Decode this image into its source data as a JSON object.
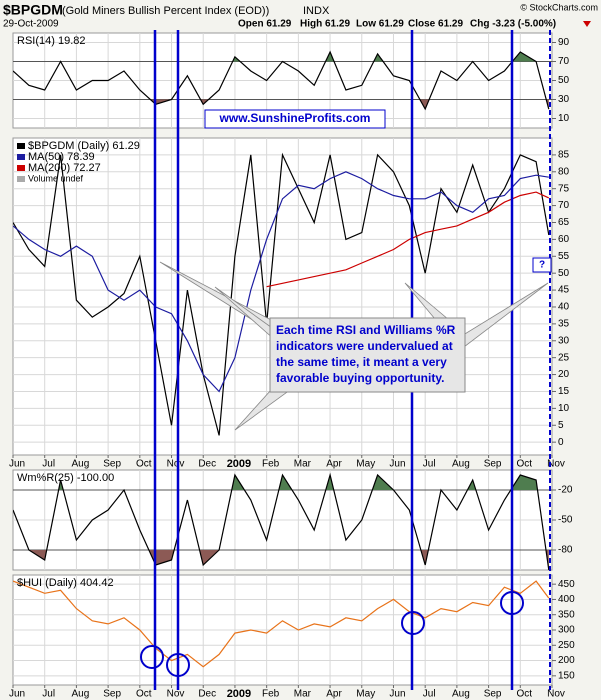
{
  "header": {
    "symbol": "$BPGDM",
    "name": "(Gold Miners Bullish Percent Index (EOD))",
    "exchange": "INDX",
    "date": "29-Oct-2009",
    "open": "Open 61.29",
    "high": "High 61.29",
    "low": "Low 61.29",
    "close": "Close 61.29",
    "change": "Chg -3.23 (-5.00%)",
    "credit": "© StockCharts.com"
  },
  "annotations": {
    "website": "www.SunshineProfits.com",
    "callout": [
      "Each time RSI and Williams %R",
      "indicators were undervalued at",
      "the same time, it meant a very",
      "favorable buying opportunity."
    ],
    "question": "?"
  },
  "chart_data": [
    {
      "type": "line",
      "xlim": [
        0,
        17
      ],
      "ylim": [
        0,
        100
      ],
      "yticks": [
        10,
        30,
        50,
        70,
        90
      ],
      "bands": {
        "low": 30,
        "high": 70,
        "low_color": "#8c5a55",
        "high_color": "#4f7d4f"
      },
      "x": [
        0,
        0.5,
        1,
        1.5,
        2,
        2.5,
        3,
        3.5,
        4,
        4.5,
        5,
        5.5,
        6,
        6.5,
        7,
        7.5,
        8,
        8.5,
        9,
        9.5,
        10,
        10.5,
        11,
        11.5,
        12,
        12.5,
        13,
        13.5,
        14,
        14.5,
        15,
        15.5,
        16,
        16.5,
        16.9
      ],
      "series": [
        {
          "name": "RSI(14) 19.82",
          "color": "#000000",
          "values": [
            60,
            45,
            40,
            70,
            40,
            50,
            50,
            60,
            40,
            25,
            30,
            55,
            25,
            40,
            75,
            60,
            50,
            70,
            60,
            45,
            80,
            40,
            45,
            78,
            55,
            50,
            20,
            60,
            50,
            70,
            50,
            60,
            80,
            70,
            19.82
          ]
        }
      ]
    },
    {
      "type": "line",
      "xlim": [
        0,
        17
      ],
      "ylim": [
        -3.8,
        90
      ],
      "yticks": [
        0,
        5,
        10,
        15,
        20,
        25,
        30,
        35,
        40,
        45,
        50,
        55,
        60,
        65,
        70,
        75,
        80,
        85
      ],
      "xticks": [
        {
          "value": 0,
          "label": "Jun"
        },
        {
          "value": 1,
          "label": "Jul"
        },
        {
          "value": 2,
          "label": "Aug"
        },
        {
          "value": 3,
          "label": "Sep"
        },
        {
          "value": 4,
          "label": "Oct"
        },
        {
          "value": 5,
          "label": "Nov"
        },
        {
          "value": 6,
          "label": "Dec"
        },
        {
          "value": 7,
          "label": "2009"
        },
        {
          "value": 8,
          "label": "Feb"
        },
        {
          "value": 9,
          "label": "Mar"
        },
        {
          "value": 10,
          "label": "Apr"
        },
        {
          "value": 11,
          "label": "May"
        },
        {
          "value": 12,
          "label": "Jun"
        },
        {
          "value": 13,
          "label": "Jul"
        },
        {
          "value": 14,
          "label": "Aug"
        },
        {
          "value": 15,
          "label": "Sep"
        },
        {
          "value": 16,
          "label": "Oct"
        },
        {
          "value": 17,
          "label": "Nov"
        }
      ],
      "x": [
        0,
        0.5,
        1,
        1.5,
        2,
        2.5,
        3,
        3.5,
        4,
        4.5,
        5,
        5.5,
        6,
        6.5,
        7,
        7.5,
        8,
        8.5,
        9,
        9.5,
        10,
        10.5,
        11,
        11.5,
        12,
        12.5,
        13,
        13.5,
        14,
        14.5,
        15,
        15.5,
        16,
        16.5,
        16.9
      ],
      "series": [
        {
          "name": "$BPGDM (Daily) 61.29",
          "color": "#000000",
          "values": [
            65,
            57,
            52,
            85,
            42,
            37,
            40,
            44,
            55,
            30,
            5,
            45,
            20,
            2,
            55,
            85,
            35,
            85,
            75,
            65,
            85,
            60,
            62,
            85,
            80,
            70,
            50,
            75,
            68,
            82,
            68,
            75,
            85,
            83,
            61.29
          ]
        },
        {
          "name": "MA(50) 78.39",
          "color": "#1c1ca0",
          "values": [
            64,
            60,
            57,
            55,
            58,
            55,
            45,
            42,
            45,
            40,
            38,
            30,
            20,
            15,
            25,
            45,
            60,
            72,
            76,
            75,
            78,
            80,
            78,
            75,
            73,
            72,
            72,
            74,
            70,
            68,
            72,
            73,
            78,
            79,
            78.39
          ]
        },
        {
          "name": "MA(200) 72.27",
          "color": "#cc0000",
          "values": [
            null,
            null,
            null,
            null,
            null,
            null,
            null,
            null,
            null,
            null,
            null,
            null,
            null,
            null,
            null,
            null,
            46,
            47,
            48,
            49,
            50,
            51,
            53,
            55,
            57,
            60,
            62,
            63,
            64,
            66,
            68,
            71,
            73,
            74,
            72.27
          ]
        }
      ],
      "extra_legend": "Volume undef"
    },
    {
      "type": "line",
      "xlim": [
        0,
        17
      ],
      "ylim": [
        -100,
        0
      ],
      "yticks": [
        -20,
        -50,
        -80
      ],
      "bands": {
        "low": -80,
        "high": -20,
        "low_color": "#8c5a55",
        "high_color": "#4f7d4f"
      },
      "x": [
        0,
        0.5,
        1,
        1.5,
        2,
        2.5,
        3,
        3.5,
        4,
        4.5,
        5,
        5.5,
        6,
        6.5,
        7,
        7.5,
        8,
        8.5,
        9,
        9.5,
        10,
        10.5,
        11,
        11.5,
        12,
        12.5,
        13,
        13.5,
        14,
        14.5,
        15,
        15.5,
        16,
        16.5,
        16.9
      ],
      "series": [
        {
          "name": "Wm%R(25) -100.00",
          "color": "#000000",
          "values": [
            -40,
            -80,
            -90,
            -10,
            -70,
            -50,
            -40,
            -20,
            -60,
            -95,
            -90,
            -30,
            -95,
            -80,
            -5,
            -30,
            -70,
            -5,
            -30,
            -60,
            -5,
            -70,
            -50,
            -5,
            -20,
            -40,
            -95,
            -20,
            -40,
            -10,
            -60,
            -30,
            -5,
            -10,
            -100
          ]
        }
      ]
    },
    {
      "type": "line",
      "xlim": [
        0,
        17
      ],
      "ylim": [
        120,
        480
      ],
      "yticks": [
        150,
        200,
        250,
        300,
        350,
        400,
        450
      ],
      "xticks": [
        {
          "value": 0,
          "label": "Jun"
        },
        {
          "value": 1,
          "label": "Jul"
        },
        {
          "value": 2,
          "label": "Aug"
        },
        {
          "value": 3,
          "label": "Sep"
        },
        {
          "value": 4,
          "label": "Oct"
        },
        {
          "value": 5,
          "label": "Nov"
        },
        {
          "value": 6,
          "label": "Dec"
        },
        {
          "value": 7,
          "label": "2009"
        },
        {
          "value": 8,
          "label": "Feb"
        },
        {
          "value": 9,
          "label": "Mar"
        },
        {
          "value": 10,
          "label": "Apr"
        },
        {
          "value": 11,
          "label": "May"
        },
        {
          "value": 12,
          "label": "Jun"
        },
        {
          "value": 13,
          "label": "Jul"
        },
        {
          "value": 14,
          "label": "Aug"
        },
        {
          "value": 15,
          "label": "Sep"
        },
        {
          "value": 16,
          "label": "Oct"
        },
        {
          "value": 17,
          "label": "Nov"
        }
      ],
      "x": [
        0,
        0.5,
        1,
        1.5,
        2,
        2.5,
        3,
        3.5,
        4,
        4.5,
        5,
        5.5,
        6,
        6.5,
        7,
        7.5,
        8,
        8.5,
        9,
        9.5,
        10,
        10.5,
        11,
        11.5,
        12,
        12.5,
        13,
        13.5,
        14,
        14.5,
        15,
        15.5,
        16,
        16.5,
        16.9
      ],
      "series": [
        {
          "name": "$HUI (Daily) 404.42",
          "color": "#e8731a",
          "values": [
            460,
            440,
            420,
            430,
            370,
            330,
            320,
            340,
            300,
            240,
            200,
            220,
            180,
            220,
            290,
            300,
            290,
            330,
            300,
            320,
            310,
            340,
            330,
            370,
            400,
            360,
            340,
            370,
            360,
            390,
            380,
            440,
            420,
            460,
            404.42
          ]
        }
      ]
    }
  ]
}
